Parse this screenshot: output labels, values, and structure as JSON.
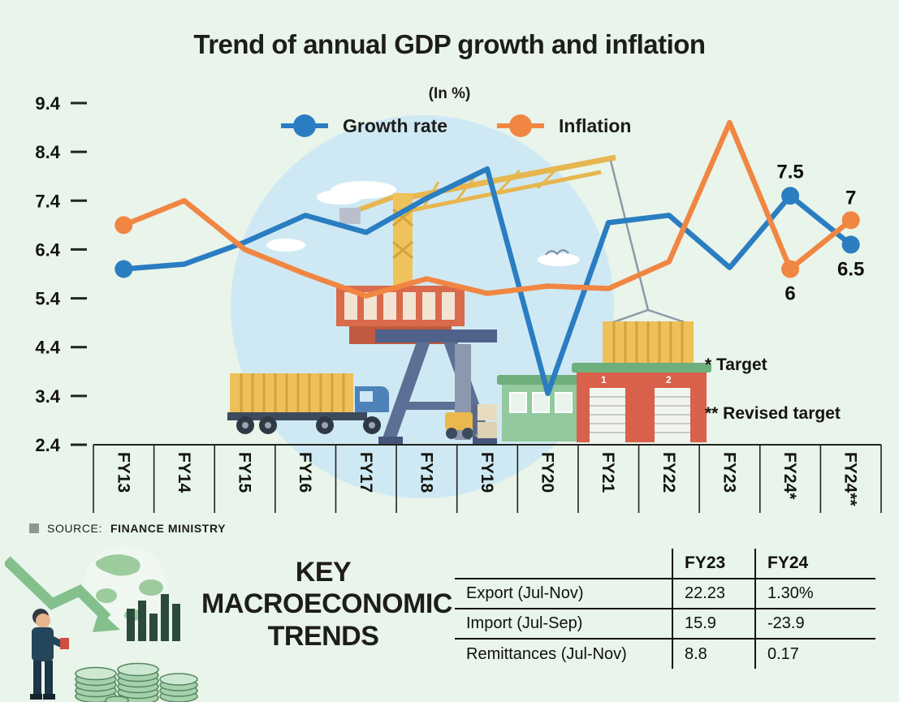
{
  "chart_data": {
    "type": "line",
    "title": "Trend of annual GDP growth and inflation",
    "subtitle": "(In %)",
    "categories": [
      "FY13",
      "FY14",
      "FY15",
      "FY16",
      "FY17",
      "FY18",
      "FY19",
      "FY20",
      "FY21",
      "FY22",
      "FY23",
      "FY24*",
      "FY24**"
    ],
    "yticks": [
      9.4,
      8.4,
      7.4,
      6.4,
      5.4,
      4.4,
      3.4,
      2.4
    ],
    "ylim": [
      2.4,
      9.4
    ],
    "grid": false,
    "legend_position": "top",
    "series": [
      {
        "name": "Growth rate",
        "color": "#2a7dc1",
        "values": [
          6.0,
          6.1,
          6.55,
          7.1,
          6.75,
          7.45,
          8.05,
          3.45,
          6.95,
          7.1,
          6.03,
          7.5,
          6.5
        ]
      },
      {
        "name": "Inflation",
        "color": "#f18643",
        "values": [
          6.9,
          7.4,
          6.4,
          5.9,
          5.45,
          5.8,
          5.5,
          5.65,
          5.6,
          6.15,
          9.0,
          6.0,
          7.0
        ]
      }
    ],
    "marker_indices": [
      0,
      11,
      12
    ],
    "point_labels": [
      {
        "series": 0,
        "index": 11,
        "text": "7.5",
        "dy": -22
      },
      {
        "series": 0,
        "index": 12,
        "text": "6.5",
        "dy": 38
      },
      {
        "series": 1,
        "index": 11,
        "text": "6",
        "dy": 38
      },
      {
        "series": 1,
        "index": 12,
        "text": "7",
        "dy": -20
      }
    ],
    "notes": [
      "* Target",
      "** Revised target"
    ]
  },
  "source": {
    "label": "SOURCE:",
    "value": "FINANCE MINISTRY"
  },
  "summary": {
    "heading": "KEY MACROECONOMIC TRENDS",
    "table": {
      "columns": [
        "",
        "FY23",
        "FY24"
      ],
      "rows": [
        {
          "label": "Export (Jul-Nov)",
          "fy23": "22.23",
          "fy24": "1.30%"
        },
        {
          "label": "Import (Jul-Sep)",
          "fy23": "15.9",
          "fy24": "-23.9"
        },
        {
          "label": "Remittances (Jul-Nov)",
          "fy23": "8.8",
          "fy24": "0.17"
        }
      ]
    }
  }
}
